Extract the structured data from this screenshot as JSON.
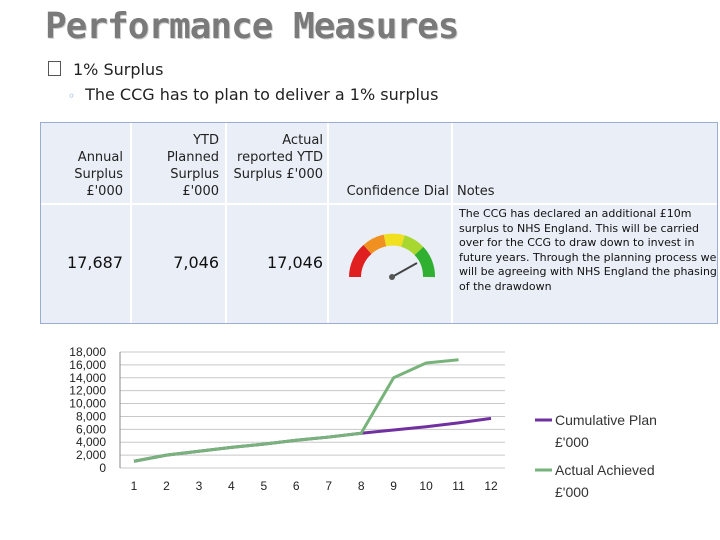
{
  "slide": {
    "title": "Performance Measures",
    "bullet": "1% Surplus",
    "subbullet": "The CCG has to plan to deliver a 1% surplus"
  },
  "table": {
    "headers": [
      "Annual Surplus £'000",
      "YTD Planned Surplus £'000",
      "Actual reported YTD Surplus £'000",
      "Confidence Dial",
      "Notes"
    ],
    "annual_surplus": "17,687",
    "ytd_planned": "7,046",
    "actual_ytd": "17,046",
    "notes": "The CCG has declared an additional £10m surplus to NHS England. This will be carried over for the CCG to draw down to invest in future years. Through the planning process we will be agreeing with NHS England the phasing of the drawdown"
  },
  "colors": {
    "plan_line": "#7030a0",
    "actual_line": "#77b37a",
    "table_bg": "#e9eef7"
  },
  "chart_data": {
    "type": "line",
    "x": [
      1,
      2,
      3,
      4,
      5,
      6,
      7,
      8,
      9,
      10,
      11,
      12
    ],
    "categories": [
      "1",
      "2",
      "3",
      "4",
      "5",
      "6",
      "7",
      "8",
      "9",
      "10",
      "11",
      "12"
    ],
    "y_ticks": [
      "18,000",
      "16,000",
      "14,000",
      "12,000",
      "10,000",
      "8,000",
      "6,000",
      "4,000",
      "2,000",
      "0"
    ],
    "ylim": [
      0,
      18000
    ],
    "series": [
      {
        "name": "Cumulative Plan £'000",
        "values": [
          1050,
          2000,
          2600,
          3200,
          3700,
          4300,
          4800,
          5400,
          5900,
          6400,
          7000,
          7700
        ]
      },
      {
        "name": "Actual Achieved £'000",
        "values": [
          1050,
          2000,
          2600,
          3200,
          3700,
          4300,
          4800,
          5400,
          14000,
          16300,
          16800,
          null
        ]
      }
    ],
    "legend": "right"
  }
}
